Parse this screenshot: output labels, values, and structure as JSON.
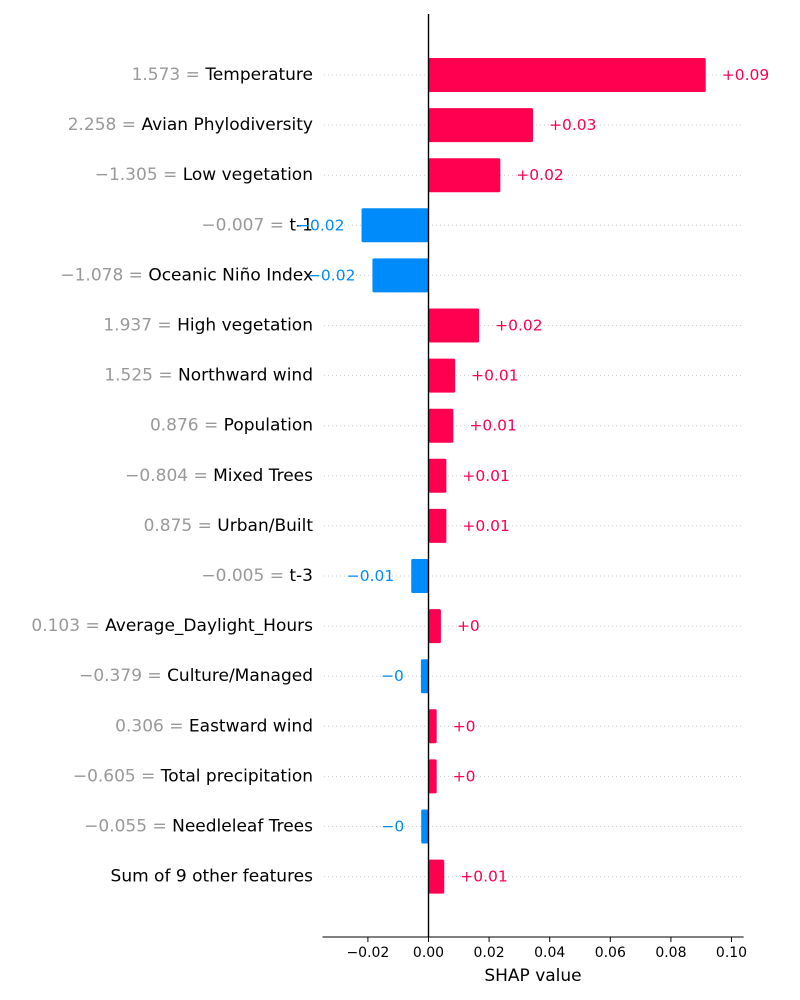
{
  "chart_data": {
    "type": "bar",
    "orientation": "horizontal",
    "chart_kind": "shap-waterfall-bar",
    "xlabel": "SHAP value",
    "xlim": [
      -0.035,
      0.104
    ],
    "xticks": [
      -0.02,
      0.0,
      0.02,
      0.04,
      0.06,
      0.08,
      0.1
    ],
    "xtick_labels": [
      "−0.02",
      "0.00",
      "0.02",
      "0.04",
      "0.06",
      "0.08",
      "0.10"
    ],
    "grid": "dotted horizontal guide lines",
    "colors": {
      "positive": "#ff0051",
      "negative": "#008bfb",
      "feature_value": "#999999"
    },
    "rows": [
      {
        "value_text": "1.573 =",
        "feature": "Temperature",
        "shap": 0.0915,
        "label": "+0.09"
      },
      {
        "value_text": "2.258 =",
        "feature": "Avian Phylodiversity",
        "shap": 0.0345,
        "label": "+0.03"
      },
      {
        "value_text": "−1.305 =",
        "feature": "Low vegetation",
        "shap": 0.0237,
        "label": "+0.02"
      },
      {
        "value_text": "−0.007 =",
        "feature": "t-1",
        "shap": -0.0221,
        "label": "−0.02"
      },
      {
        "value_text": "−1.078 =",
        "feature": "Oceanic Niño Index",
        "shap": -0.0185,
        "label": "−0.02"
      },
      {
        "value_text": "1.937 =",
        "feature": "High vegetation",
        "shap": 0.0167,
        "label": "+0.02"
      },
      {
        "value_text": "1.525 =",
        "feature": "Northward wind",
        "shap": 0.0088,
        "label": "+0.01"
      },
      {
        "value_text": "0.876 =",
        "feature": "Population",
        "shap": 0.0082,
        "label": "+0.01"
      },
      {
        "value_text": "−0.804 =",
        "feature": "Mixed Trees",
        "shap": 0.0059,
        "label": "+0.01"
      },
      {
        "value_text": "0.875 =",
        "feature": "Urban/Built",
        "shap": 0.0059,
        "label": "+0.01"
      },
      {
        "value_text": "−0.005 =",
        "feature": "t-3",
        "shap": -0.0057,
        "label": "−0.01"
      },
      {
        "value_text": "0.103 =",
        "feature": "Average_Daylight_Hours",
        "shap": 0.0041,
        "label": "+0"
      },
      {
        "value_text": "−0.379 =",
        "feature": "Culture/Managed",
        "shap": -0.0025,
        "label": "−0"
      },
      {
        "value_text": "0.306 =",
        "feature": "Eastward wind",
        "shap": 0.0027,
        "label": "+0"
      },
      {
        "value_text": "−0.605 =",
        "feature": "Total precipitation",
        "shap": 0.0027,
        "label": "+0"
      },
      {
        "value_text": "−0.055 =",
        "feature": "Needleleaf Trees",
        "shap": -0.0024,
        "label": "−0"
      },
      {
        "value_text": "",
        "feature": "Sum of 9 other features",
        "shap": 0.0052,
        "label": "+0.01"
      }
    ]
  }
}
